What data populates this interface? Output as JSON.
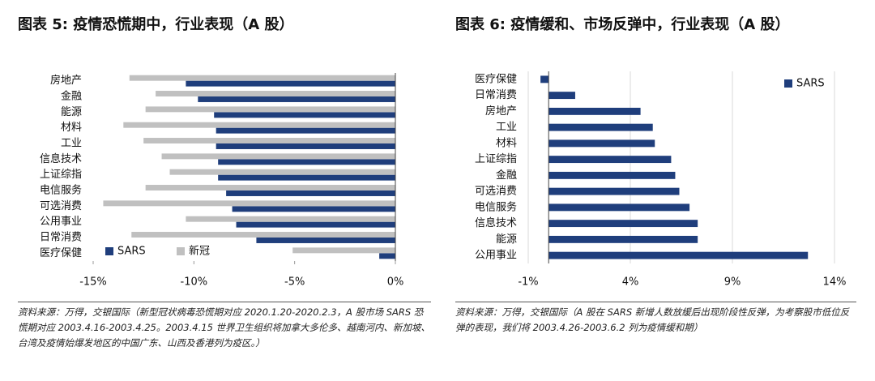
{
  "chart_data": [
    {
      "type": "hbar",
      "title": "图表 5: 疫情恐慌期中，行业表现（A 股）",
      "categories": [
        "房地产",
        "金融",
        "能源",
        "材料",
        "工业",
        "信息技术",
        "上证综指",
        "电信服务",
        "可选消费",
        "公用事业",
        "日常消费",
        "医疗保健"
      ],
      "series": [
        {
          "name": "SARS",
          "color": "#1f3e7c",
          "values": [
            -10.4,
            -9.8,
            -9.0,
            -8.9,
            -8.9,
            -8.8,
            -8.8,
            -8.4,
            -8.1,
            -7.9,
            -6.9,
            -0.8
          ]
        },
        {
          "name": "新冠",
          "color": "#c0c0c0",
          "values": [
            -13.2,
            -11.9,
            -12.4,
            -13.5,
            -12.5,
            -11.6,
            -11.2,
            -12.4,
            -14.5,
            -10.4,
            -13.1,
            -5.1
          ]
        }
      ],
      "xlim": [
        -15,
        0
      ],
      "xticks": [
        {
          "value": -15,
          "label": "-15%"
        },
        {
          "value": -10,
          "label": "-10%"
        },
        {
          "value": -5,
          "label": "-5%"
        },
        {
          "value": 0,
          "label": "0%"
        }
      ],
      "grid": false,
      "legend": "lower-left",
      "source": "资料来源：万得，交银国际（新型冠状病毒恐慌期对应 2020.1.20-2020.2.3，A 股市场 SARS 恐慌期对应 2003.4.16-2003.4.25。2003.4.15 世界卫生组织将加拿大多伦多、越南河内、新加坡、台湾及疫情始爆发地区的中国广东、山西及香港列为疫区。）"
    },
    {
      "type": "hbar",
      "title": "图表 6: 疫情缓和、市场反弹中，行业表现（A 股）",
      "categories": [
        "医疗保健",
        "日常消费",
        "房地产",
        "工业",
        "材料",
        "上证综指",
        "金融",
        "可选消费",
        "电信服务",
        "信息技术",
        "能源",
        "公用事业"
      ],
      "series": [
        {
          "name": "SARS",
          "color": "#1f3e7c",
          "values": [
            -0.4,
            1.3,
            4.5,
            5.1,
            5.2,
            6.0,
            6.2,
            6.4,
            6.9,
            7.3,
            7.3,
            12.7
          ]
        }
      ],
      "xlim": [
        -1,
        14
      ],
      "xticks": [
        {
          "value": -1,
          "label": "-1%"
        },
        {
          "value": 4,
          "label": "4%"
        },
        {
          "value": 9,
          "label": "9%"
        },
        {
          "value": 14,
          "label": "14%"
        }
      ],
      "grid": true,
      "legend": "upper-right",
      "source": "资料来源：万得，交银国际（A 股在 SARS 新增人数放缓后出现阶段性反弹，为考察股市低位反弹的表现，我们将 2003.4.26-2003.6.2 列为疫情缓和期）"
    }
  ]
}
